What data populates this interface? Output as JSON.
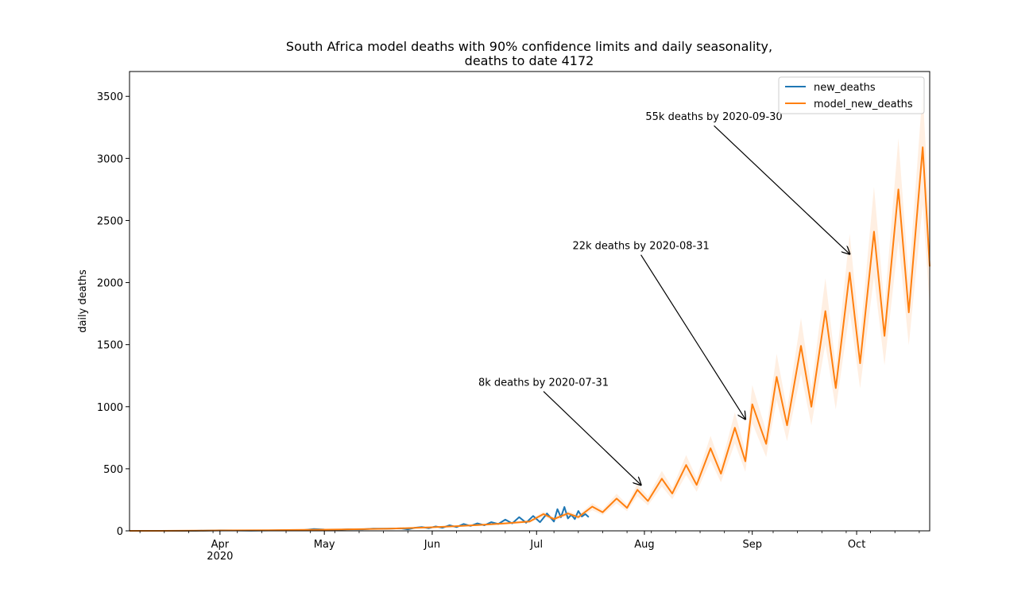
{
  "chart_data": {
    "type": "line",
    "title": [
      "South Africa model deaths with 90% confidence limits and daily seasonality,",
      "deaths to date 4172"
    ],
    "xlabel": "",
    "ylabel": "daily deaths",
    "x_range": [
      "2020-03-06",
      "2020-10-22"
    ],
    "ylim": [
      0,
      3700
    ],
    "yticks": [
      0,
      500,
      1000,
      1500,
      2000,
      2500,
      3000,
      3500
    ],
    "xticks": [
      {
        "date": "2020-04-01",
        "label": "Apr",
        "sublabel": "2020"
      },
      {
        "date": "2020-05-01",
        "label": "May",
        "sublabel": ""
      },
      {
        "date": "2020-06-01",
        "label": "Jun",
        "sublabel": ""
      },
      {
        "date": "2020-07-01",
        "label": "Jul",
        "sublabel": ""
      },
      {
        "date": "2020-08-01",
        "label": "Aug",
        "sublabel": ""
      },
      {
        "date": "2020-09-01",
        "label": "Sep",
        "sublabel": ""
      },
      {
        "date": "2020-10-01",
        "label": "Oct",
        "sublabel": ""
      }
    ],
    "grid": false,
    "legend_position": "top-right",
    "series": [
      {
        "name": "new_deaths",
        "color": "#1f77b4",
        "points": [
          [
            "2020-03-06",
            0
          ],
          [
            "2020-03-15",
            0
          ],
          [
            "2020-03-25",
            0
          ],
          [
            "2020-03-28",
            2
          ],
          [
            "2020-04-01",
            4
          ],
          [
            "2020-04-05",
            3
          ],
          [
            "2020-04-10",
            2
          ],
          [
            "2020-04-15",
            3
          ],
          [
            "2020-04-20",
            5
          ],
          [
            "2020-04-25",
            6
          ],
          [
            "2020-04-28",
            14
          ],
          [
            "2020-05-01",
            10
          ],
          [
            "2020-05-05",
            8
          ],
          [
            "2020-05-08",
            13
          ],
          [
            "2020-05-12",
            12
          ],
          [
            "2020-05-15",
            17
          ],
          [
            "2020-05-19",
            18
          ],
          [
            "2020-05-23",
            20
          ],
          [
            "2020-05-25",
            12
          ],
          [
            "2020-05-27",
            25
          ],
          [
            "2020-05-29",
            30
          ],
          [
            "2020-05-31",
            22
          ],
          [
            "2020-06-02",
            35
          ],
          [
            "2020-06-04",
            25
          ],
          [
            "2020-06-06",
            45
          ],
          [
            "2020-06-08",
            30
          ],
          [
            "2020-06-10",
            55
          ],
          [
            "2020-06-12",
            40
          ],
          [
            "2020-06-14",
            60
          ],
          [
            "2020-06-16",
            45
          ],
          [
            "2020-06-18",
            70
          ],
          [
            "2020-06-20",
            55
          ],
          [
            "2020-06-22",
            90
          ],
          [
            "2020-06-24",
            60
          ],
          [
            "2020-06-26",
            110
          ],
          [
            "2020-06-28",
            65
          ],
          [
            "2020-06-30",
            120
          ],
          [
            "2020-07-02",
            70
          ],
          [
            "2020-07-04",
            140
          ],
          [
            "2020-07-06",
            75
          ],
          [
            "2020-07-07",
            175
          ],
          [
            "2020-07-08",
            110
          ],
          [
            "2020-07-09",
            192
          ],
          [
            "2020-07-10",
            100
          ],
          [
            "2020-07-11",
            130
          ],
          [
            "2020-07-12",
            95
          ],
          [
            "2020-07-13",
            160
          ],
          [
            "2020-07-14",
            115
          ],
          [
            "2020-07-15",
            135
          ],
          [
            "2020-07-16",
            110
          ]
        ]
      },
      {
        "name": "model_new_deaths",
        "color": "#ff7f0e",
        "points": [
          [
            "2020-03-06",
            0
          ],
          [
            "2020-03-15",
            0
          ],
          [
            "2020-03-25",
            1
          ],
          [
            "2020-04-01",
            3
          ],
          [
            "2020-04-08",
            4
          ],
          [
            "2020-04-15",
            5
          ],
          [
            "2020-04-22",
            7
          ],
          [
            "2020-04-29",
            9
          ],
          [
            "2020-05-06",
            11
          ],
          [
            "2020-05-13",
            14
          ],
          [
            "2020-05-20",
            18
          ],
          [
            "2020-05-27",
            24
          ],
          [
            "2020-06-01",
            29
          ],
          [
            "2020-06-08",
            38
          ],
          [
            "2020-06-15",
            48
          ],
          [
            "2020-06-22",
            60
          ],
          [
            "2020-06-29",
            75
          ],
          [
            "2020-07-03",
            135
          ],
          [
            "2020-07-06",
            95
          ],
          [
            "2020-07-10",
            140
          ],
          [
            "2020-07-13",
            110
          ],
          [
            "2020-07-17",
            195
          ],
          [
            "2020-07-20",
            150
          ],
          [
            "2020-07-24",
            260
          ],
          [
            "2020-07-27",
            185
          ],
          [
            "2020-07-30",
            330
          ],
          [
            "2020-08-02",
            240
          ],
          [
            "2020-08-06",
            420
          ],
          [
            "2020-08-09",
            300
          ],
          [
            "2020-08-13",
            530
          ],
          [
            "2020-08-16",
            370
          ],
          [
            "2020-08-20",
            665
          ],
          [
            "2020-08-23",
            460
          ],
          [
            "2020-08-27",
            830
          ],
          [
            "2020-08-30",
            560
          ],
          [
            "2020-09-01",
            1020
          ],
          [
            "2020-09-05",
            700
          ],
          [
            "2020-09-08",
            1240
          ],
          [
            "2020-09-11",
            850
          ],
          [
            "2020-09-15",
            1490
          ],
          [
            "2020-09-18",
            1000
          ],
          [
            "2020-09-22",
            1770
          ],
          [
            "2020-09-25",
            1150
          ],
          [
            "2020-09-29",
            2080
          ],
          [
            "2020-10-02",
            1350
          ],
          [
            "2020-10-06",
            2410
          ],
          [
            "2020-10-09",
            1570
          ],
          [
            "2020-10-13",
            2750
          ],
          [
            "2020-10-16",
            1760
          ],
          [
            "2020-10-20",
            3090
          ],
          [
            "2020-10-22",
            2130
          ]
        ]
      }
    ],
    "confidence_band": {
      "label": "90% confidence limits",
      "color": "#ff7f0e",
      "relative_width": 0.15
    },
    "annotations": [
      {
        "text": "8k deaths by 2020-07-31",
        "text_date": "2020-07-03",
        "text_value": 1200,
        "arrow_date": "2020-07-31",
        "arrow_value": 370
      },
      {
        "text": "22k deaths by 2020-08-31",
        "text_date": "2020-07-31",
        "text_value": 2300,
        "arrow_date": "2020-08-30",
        "arrow_value": 900
      },
      {
        "text": "55k deaths by 2020-09-30",
        "text_date": "2020-08-21",
        "text_value": 3340,
        "arrow_date": "2020-09-29",
        "arrow_value": 2230
      }
    ]
  }
}
